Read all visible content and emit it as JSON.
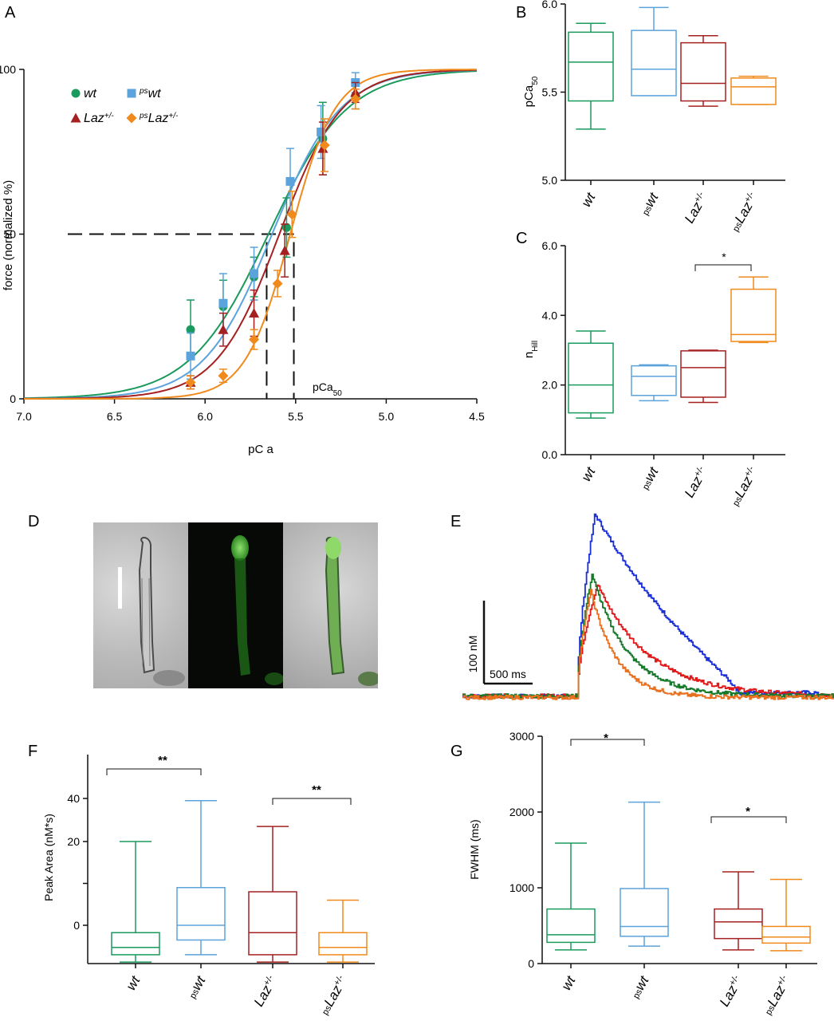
{
  "colors": {
    "wt": "#1a9a5c",
    "ps_wt": "#5ba3dc",
    "laz": "#a52020",
    "ps_laz": "#f08a1c",
    "black": "#111111",
    "blue_trace": "#1a2fd8",
    "red_trace": "#e01a1a",
    "green_trace": "#177a2b",
    "orange_trace": "#e8701e"
  },
  "panels": {
    "A": {
      "label": "A",
      "x_ticks": [
        "7.0",
        "6.5",
        "6.0",
        "5.5",
        "5.0",
        "4.5"
      ],
      "y_ticks": [
        "0",
        "50",
        "100"
      ],
      "xlabel": "pC a",
      "ylabel": "force (normalized %)",
      "annotation": "pCa50"
    },
    "B": {
      "label": "B",
      "y_ticks": [
        "5.0",
        "5.5",
        "6.0"
      ],
      "ylabel": "pCa50"
    },
    "C": {
      "label": "C",
      "y_ticks": [
        "0.0",
        "2.0",
        "4.0",
        "6.0"
      ],
      "ylabel": "nHill",
      "significance": "*"
    },
    "D": {
      "label": "D"
    },
    "E": {
      "label": "E",
      "scale_y": "100 nM",
      "scale_x": "500 ms"
    },
    "F": {
      "label": "F",
      "y_ticks": [
        "0",
        "20",
        "40"
      ],
      "ylabel": "Peak Area (nM*s)",
      "sig1": "**",
      "sig2": "**"
    },
    "G": {
      "label": "G",
      "y_ticks": [
        "0",
        "1000",
        "2000",
        "3000"
      ],
      "ylabel": "FWHM (ms)",
      "sig1": "*",
      "sig2": "*"
    }
  },
  "groups": [
    {
      "key": "wt",
      "base": "wt",
      "sup": "",
      "pre": ""
    },
    {
      "key": "ps_wt",
      "base": "wt",
      "sup": "",
      "pre": "ps"
    },
    {
      "key": "laz",
      "base": "Laz",
      "sup": "+/-",
      "pre": ""
    },
    {
      "key": "ps_laz",
      "base": "Laz",
      "sup": "+/-",
      "pre": "ps"
    }
  ],
  "legend": [
    {
      "key": "wt",
      "text": "wt",
      "pre": "",
      "sup": "",
      "marker": "circle"
    },
    {
      "key": "ps_wt",
      "text": "wt",
      "pre": "ps",
      "sup": "",
      "marker": "square"
    },
    {
      "key": "laz",
      "text": "Laz",
      "pre": "",
      "sup": "+/-",
      "marker": "triangle"
    },
    {
      "key": "ps_laz",
      "text": "Laz",
      "pre": "ps",
      "sup": "+/-",
      "marker": "diamond"
    }
  ],
  "chart_data": [
    {
      "type": "scatter",
      "panel": "A",
      "xlabel": "pC a",
      "ylabel": "force (normalized %)",
      "xlim": [
        7.0,
        4.5
      ],
      "ylim": [
        0,
        100
      ],
      "x_reversed": true,
      "reference_lines": {
        "y": 50,
        "x": [
          5.66,
          5.51
        ]
      },
      "fit_curves": [
        {
          "name": "wt",
          "pCa50": 5.65,
          "nHill": 2.0
        },
        {
          "name": "psWt",
          "pCa50": 5.63,
          "nHill": 2.3
        },
        {
          "name": "Laz+/-",
          "pCa50": 5.59,
          "nHill": 2.5
        },
        {
          "name": "psLaz+/-",
          "pCa50": 5.53,
          "nHill": 3.5
        }
      ],
      "series": [
        {
          "name": "wt",
          "x": [
            6.08,
            5.9,
            5.73,
            5.55,
            5.35,
            5.17
          ],
          "y": [
            21,
            28,
            37,
            52,
            79,
            92
          ],
          "err": [
            9,
            8,
            6,
            9,
            11,
            4
          ]
        },
        {
          "name": "psWt",
          "x": [
            6.08,
            5.9,
            5.73,
            5.53,
            5.36,
            5.17
          ],
          "y": [
            13,
            29,
            38,
            66,
            81,
            96
          ],
          "err": [
            7,
            9,
            8,
            10,
            8,
            3
          ]
        },
        {
          "name": "Laz+/-",
          "x": [
            6.08,
            5.9,
            5.73,
            5.56,
            5.35,
            5.17
          ],
          "y": [
            5,
            21,
            26,
            45,
            76,
            93
          ],
          "err": [
            2,
            5,
            7,
            8,
            8,
            3
          ]
        },
        {
          "name": "psLaz+/-",
          "x": [
            6.08,
            5.9,
            5.73,
            5.6,
            5.52,
            5.34,
            5.17
          ],
          "y": [
            5,
            7,
            18,
            35,
            56,
            77,
            91
          ],
          "err": [
            2,
            2,
            3,
            4,
            7,
            8,
            3
          ]
        }
      ]
    },
    {
      "type": "box",
      "panel": "B",
      "ylabel": "pCa50",
      "ylim": [
        5.0,
        6.0
      ],
      "categories": [
        "wt",
        "psWt",
        "Laz+/-",
        "psLaz+/-"
      ],
      "boxes": [
        {
          "min": 5.29,
          "q1": 5.45,
          "median": 5.67,
          "q3": 5.84,
          "max": 5.89
        },
        {
          "min": 5.48,
          "q1": 5.48,
          "median": 5.63,
          "q3": 5.85,
          "max": 5.98
        },
        {
          "min": 5.42,
          "q1": 5.45,
          "median": 5.55,
          "q3": 5.78,
          "max": 5.82
        },
        {
          "min": 5.43,
          "q1": 5.43,
          "median": 5.53,
          "q3": 5.58,
          "max": 5.59
        }
      ]
    },
    {
      "type": "box",
      "panel": "C",
      "ylabel": "nHill",
      "ylim": [
        0.0,
        6.0
      ],
      "categories": [
        "wt",
        "psWt",
        "Laz+/-",
        "psLaz+/-"
      ],
      "boxes": [
        {
          "min": 1.05,
          "q1": 1.2,
          "median": 2.0,
          "q3": 3.2,
          "max": 3.55
        },
        {
          "min": 1.55,
          "q1": 1.7,
          "median": 2.25,
          "q3": 2.55,
          "max": 2.58
        },
        {
          "min": 1.5,
          "q1": 1.65,
          "median": 2.5,
          "q3": 2.98,
          "max": 3.0
        },
        {
          "min": 3.22,
          "q1": 3.25,
          "median": 3.45,
          "q3": 4.75,
          "max": 5.1
        }
      ]
    },
    {
      "type": "line",
      "panel": "E",
      "xlabel": "ms",
      "ylabel": "nM",
      "xlim": [
        0,
        2750
      ],
      "ylim": [
        0,
        280
      ],
      "series": [
        {
          "name": "blue",
          "baseline": 4,
          "onset": 850,
          "peak": 270,
          "t_peak": 980,
          "decay_fast": 260,
          "decay_slow": {
            "ms": 1200,
            "end": 2050
          }
        },
        {
          "name": "red",
          "baseline": 4,
          "onset": 850,
          "peak": 170,
          "t_peak": 1000,
          "decay_tau": 380
        },
        {
          "name": "green",
          "baseline": 4,
          "onset": 850,
          "peak": 185,
          "t_peak": 960,
          "decay_tau": 260
        },
        {
          "name": "orange",
          "baseline": 2,
          "onset": 850,
          "peak": 160,
          "t_peak": 950,
          "decay_tau": 190
        }
      ]
    },
    {
      "type": "box",
      "panel": "F",
      "ylabel": "Peak Area (nM*s)",
      "y_ticks_shown": [
        0,
        20,
        40
      ],
      "categories": [
        "wt",
        "psWt",
        "Laz+/-",
        "psLaz+/-"
      ],
      "boxes_raw_pixels": false,
      "boxes": [
        {
          "min": -5,
          "q1": -4,
          "median": -3,
          "q3": -1,
          "max": 20
        },
        {
          "min": -4,
          "q1": -2,
          "median": 0,
          "q3": 9,
          "max": 39
        },
        {
          "min": -5,
          "q1": -4,
          "median": -1,
          "q3": 8,
          "max": 27
        },
        {
          "min": -5,
          "q1": -4,
          "median": -3,
          "q3": -1,
          "max": 6
        }
      ]
    },
    {
      "type": "box",
      "panel": "G",
      "ylabel": "FWHM (ms)",
      "ylim": [
        0,
        3000
      ],
      "categories": [
        "wt",
        "psWt",
        "Laz+/-",
        "psLaz+/-"
      ],
      "boxes": [
        {
          "min": 180,
          "q1": 280,
          "median": 380,
          "q3": 720,
          "max": 1590
        },
        {
          "min": 230,
          "q1": 360,
          "median": 490,
          "q3": 990,
          "max": 2130
        },
        {
          "min": 180,
          "q1": 330,
          "median": 550,
          "q3": 720,
          "max": 1210
        },
        {
          "min": 170,
          "q1": 270,
          "median": 350,
          "q3": 490,
          "max": 1110
        }
      ]
    }
  ]
}
